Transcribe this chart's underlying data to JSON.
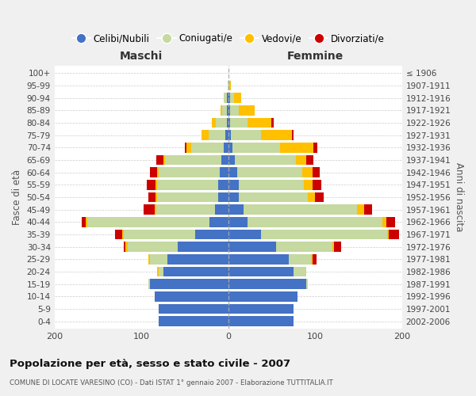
{
  "age_groups": [
    "0-4",
    "5-9",
    "10-14",
    "15-19",
    "20-24",
    "25-29",
    "30-34",
    "35-39",
    "40-44",
    "45-49",
    "50-54",
    "55-59",
    "60-64",
    "65-69",
    "70-74",
    "75-79",
    "80-84",
    "85-89",
    "90-94",
    "95-99",
    "100+"
  ],
  "birth_years": [
    "2002-2006",
    "1997-2001",
    "1992-1996",
    "1987-1991",
    "1982-1986",
    "1977-1981",
    "1972-1976",
    "1967-1971",
    "1962-1966",
    "1957-1961",
    "1952-1956",
    "1947-1951",
    "1942-1946",
    "1937-1941",
    "1932-1936",
    "1927-1931",
    "1922-1926",
    "1917-1921",
    "1912-1916",
    "1907-1911",
    "≤ 1906"
  ],
  "maschi": {
    "celibi": [
      80,
      80,
      85,
      90,
      75,
      70,
      58,
      38,
      22,
      15,
      12,
      12,
      10,
      8,
      5,
      3,
      2,
      2,
      2,
      0,
      0
    ],
    "coniugati": [
      0,
      0,
      0,
      2,
      5,
      20,
      58,
      82,
      140,
      68,
      70,
      70,
      70,
      65,
      38,
      20,
      12,
      5,
      3,
      1,
      0
    ],
    "vedovi": [
      0,
      0,
      0,
      0,
      2,
      2,
      2,
      2,
      2,
      2,
      2,
      2,
      2,
      2,
      5,
      8,
      5,
      2,
      0,
      0,
      0
    ],
    "divorziati": [
      0,
      0,
      0,
      0,
      0,
      0,
      2,
      8,
      5,
      12,
      8,
      10,
      8,
      8,
      2,
      0,
      0,
      0,
      0,
      0,
      0
    ]
  },
  "femmine": {
    "nubili": [
      75,
      75,
      80,
      90,
      75,
      70,
      55,
      38,
      22,
      18,
      12,
      12,
      10,
      8,
      5,
      3,
      2,
      2,
      2,
      0,
      0
    ],
    "coniugate": [
      0,
      0,
      0,
      2,
      15,
      25,
      65,
      145,
      155,
      130,
      80,
      75,
      75,
      70,
      55,
      35,
      20,
      10,
      5,
      1,
      0
    ],
    "vedove": [
      0,
      0,
      0,
      0,
      0,
      2,
      2,
      2,
      5,
      8,
      8,
      10,
      12,
      12,
      38,
      35,
      28,
      18,
      8,
      2,
      0
    ],
    "divorziate": [
      0,
      0,
      0,
      0,
      0,
      5,
      8,
      12,
      10,
      10,
      10,
      10,
      8,
      8,
      5,
      2,
      2,
      0,
      0,
      0,
      0
    ]
  },
  "colors": {
    "celibi": "#4472c4",
    "coniugati": "#c5d9a0",
    "vedovi": "#ffc000",
    "divorziati": "#cc0000"
  },
  "xlim": 200,
  "title": "Popolazione per età, sesso e stato civile - 2007",
  "subtitle": "COMUNE DI LOCATE VARESINO (CO) - Dati ISTAT 1° gennaio 2007 - Elaborazione TUTTITALIA.IT",
  "xlabel_left": "Maschi",
  "xlabel_right": "Femmine",
  "ylabel_left": "Fasce di età",
  "ylabel_right": "Anni di nascita",
  "bg_color": "#f0f0f0",
  "plot_bg": "#ffffff",
  "legend_labels": [
    "Celibi/Nubili",
    "Coniugati/e",
    "Vedovi/e",
    "Divorziati/e"
  ]
}
